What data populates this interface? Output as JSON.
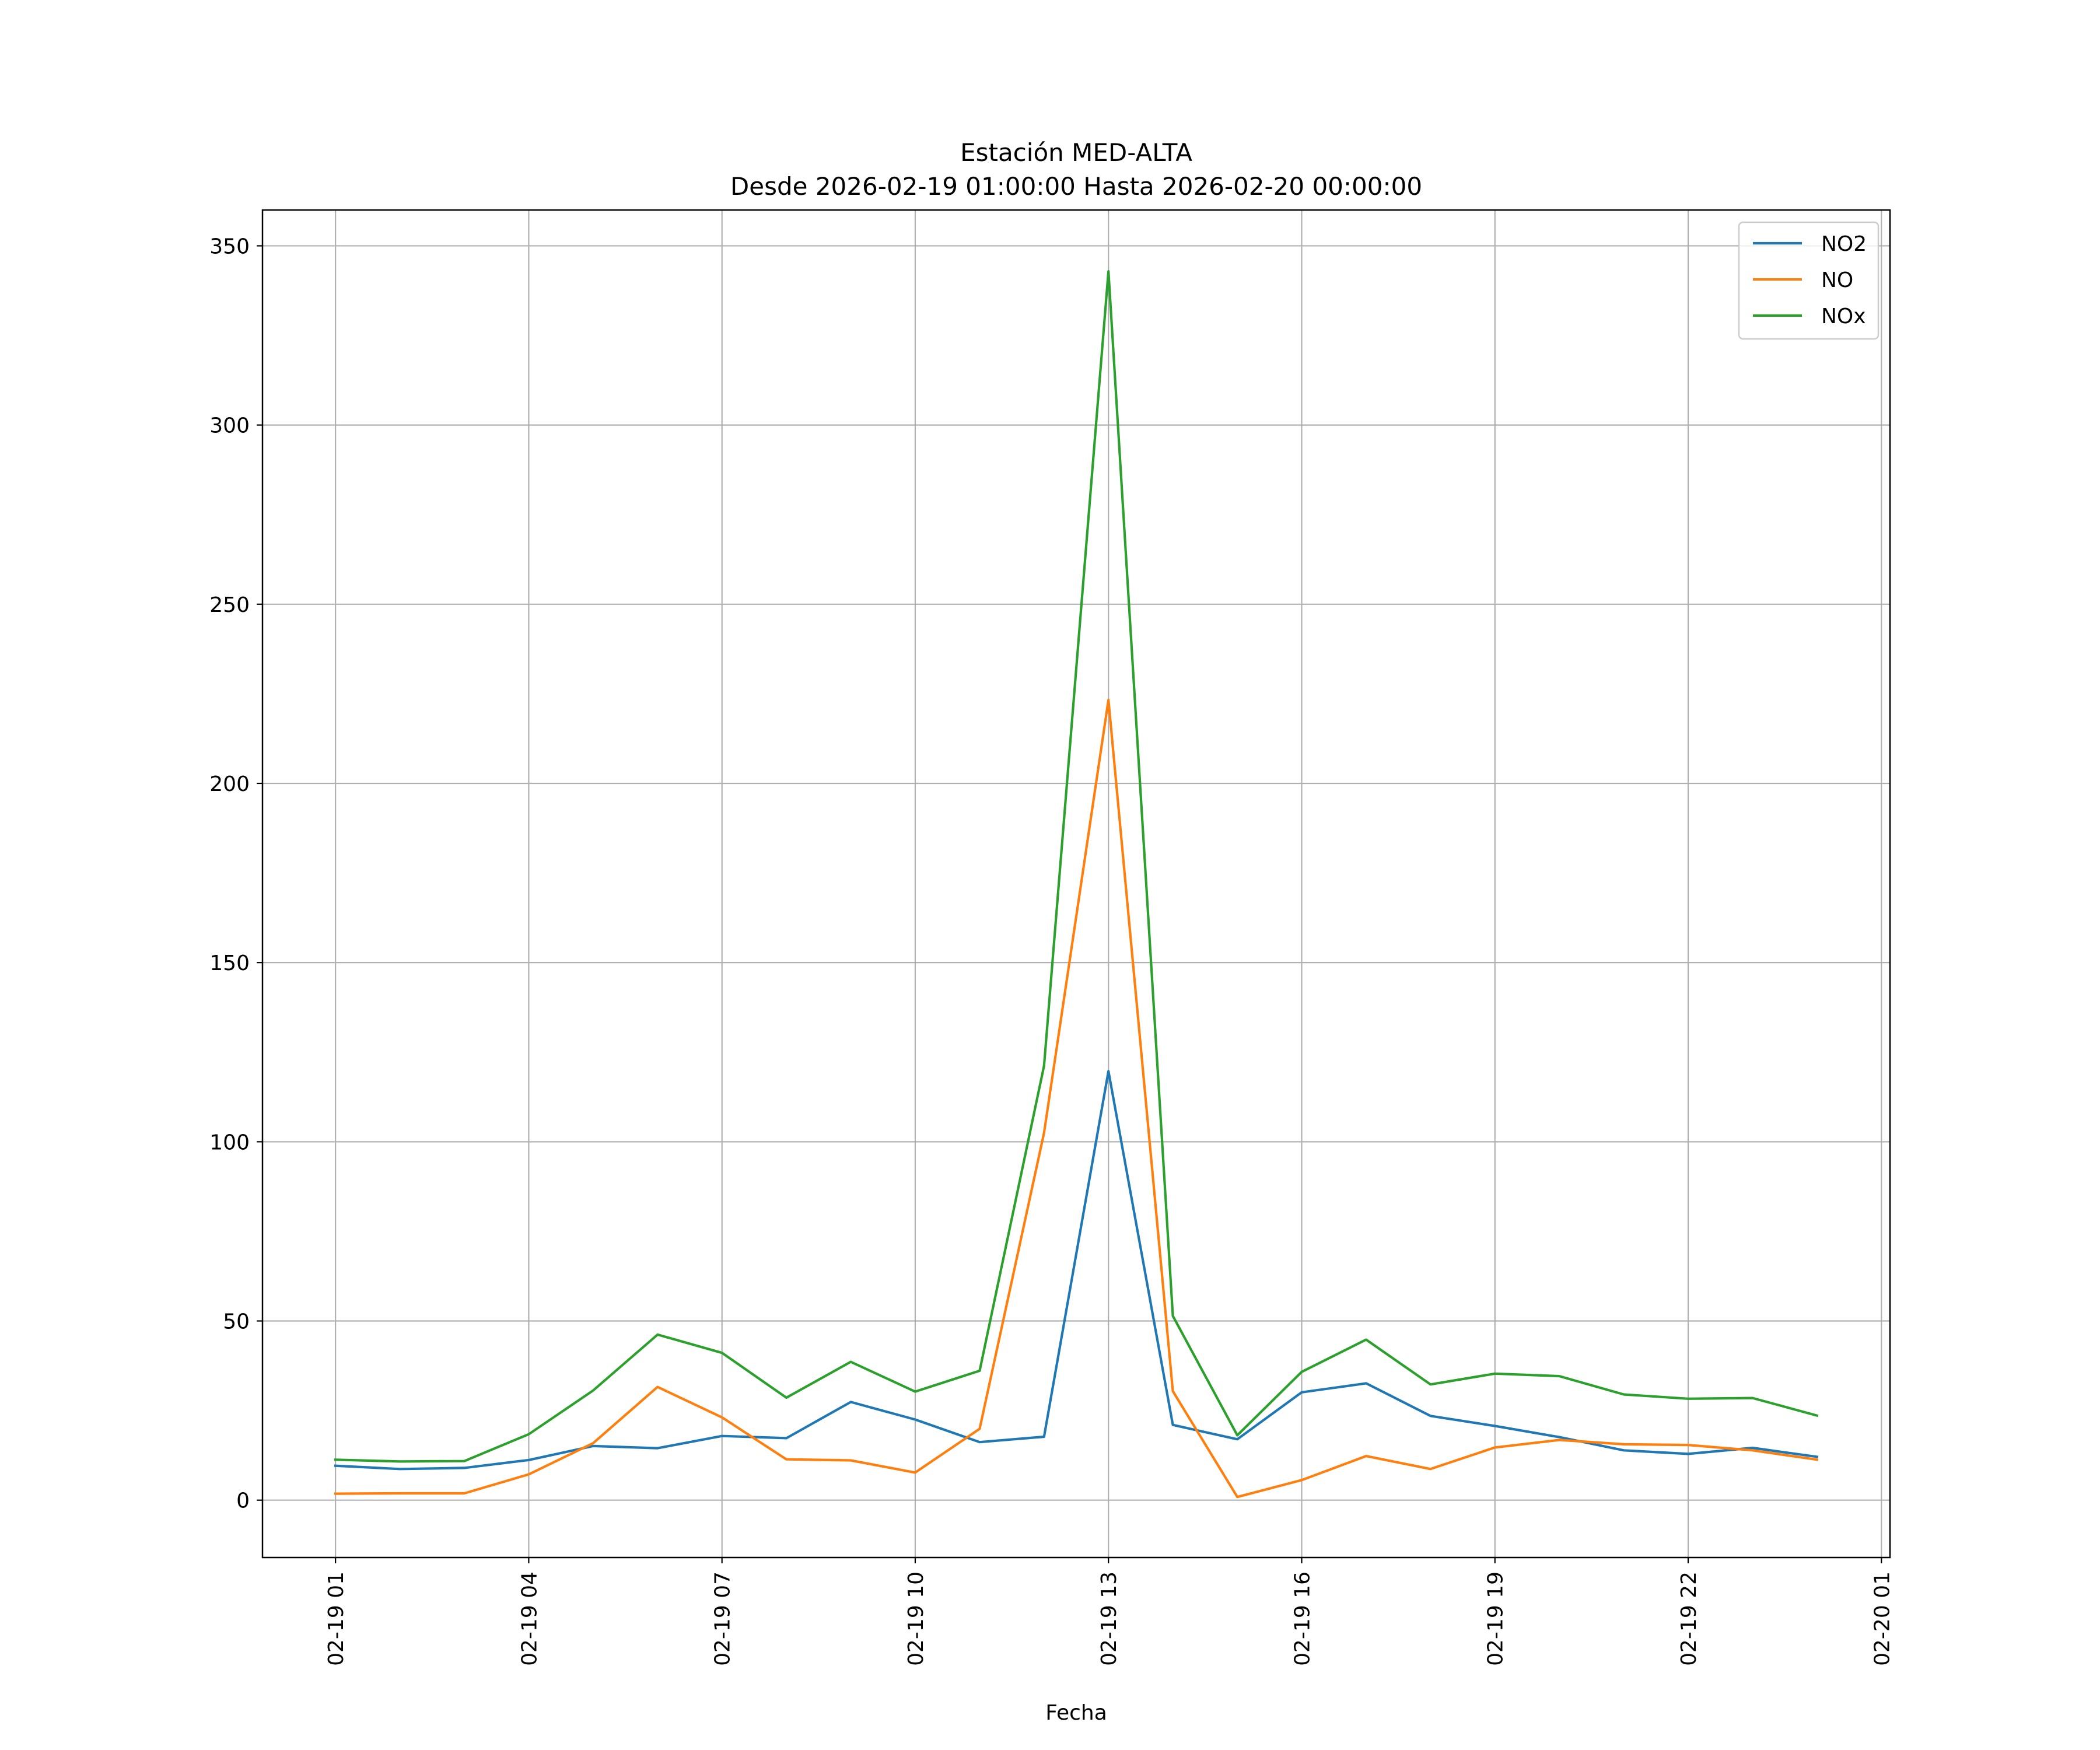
{
  "chart_data": {
    "type": "line",
    "title": "Estación MED-ALTA",
    "subtitle": "Desde 2026-02-19 01:00:00 Hasta 2026-02-20 00:00:00",
    "xlabel": "Fecha",
    "ylabel": "",
    "x": [
      "2026-02-19 01:00",
      "2026-02-19 02:00",
      "2026-02-19 03:00",
      "2026-02-19 04:00",
      "2026-02-19 05:00",
      "2026-02-19 06:00",
      "2026-02-19 07:00",
      "2026-02-19 08:00",
      "2026-02-19 09:00",
      "2026-02-19 10:00",
      "2026-02-19 11:00",
      "2026-02-19 12:00",
      "2026-02-19 13:00",
      "2026-02-19 14:00",
      "2026-02-19 15:00",
      "2026-02-19 16:00",
      "2026-02-19 17:00",
      "2026-02-19 18:00",
      "2026-02-19 19:00",
      "2026-02-19 20:00",
      "2026-02-19 21:00",
      "2026-02-19 22:00",
      "2026-02-19 23:00",
      "2026-02-20 00:00"
    ],
    "x_ticks": [
      {
        "label": "02-19 01",
        "x": "2026-02-19 01:00"
      },
      {
        "label": "02-19 04",
        "x": "2026-02-19 04:00"
      },
      {
        "label": "02-19 07",
        "x": "2026-02-19 07:00"
      },
      {
        "label": "02-19 10",
        "x": "2026-02-19 10:00"
      },
      {
        "label": "02-19 13",
        "x": "2026-02-19 13:00"
      },
      {
        "label": "02-19 16",
        "x": "2026-02-19 16:00"
      },
      {
        "label": "02-19 19",
        "x": "2026-02-19 19:00"
      },
      {
        "label": "02-19 22",
        "x": "2026-02-19 22:00"
      },
      {
        "label": "02-20 01",
        "x": "2026-02-20 01:00"
      }
    ],
    "xlim": [
      "2026-02-18 23:52",
      "2026-02-20 01:08"
    ],
    "y_ticks": [
      0,
      50,
      100,
      150,
      200,
      250,
      300,
      350
    ],
    "ylim": [
      -16,
      360
    ],
    "grid": true,
    "legend_position": "top-right",
    "series": [
      {
        "name": "NO2",
        "color": "#1f77b4",
        "values": [
          9.6,
          8.7,
          9.0,
          11.2,
          15.1,
          14.5,
          17.9,
          17.3,
          27.4,
          22.5,
          16.2,
          17.7,
          119.7,
          21.0,
          17.0,
          30.1,
          32.6,
          23.5,
          20.7,
          17.6,
          13.9,
          12.9,
          14.6,
          12.1
        ]
      },
      {
        "name": "NO",
        "color": "#ff7f0e",
        "values": [
          1.8,
          1.9,
          1.9,
          7.2,
          15.9,
          31.6,
          23.1,
          11.4,
          11.1,
          7.7,
          19.9,
          102.5,
          223.3,
          30.4,
          0.9,
          5.6,
          12.3,
          8.7,
          14.7,
          16.8,
          15.6,
          15.4,
          13.9,
          11.3
        ]
      },
      {
        "name": "NOx",
        "color": "#2ca02c",
        "values": [
          11.3,
          10.8,
          10.9,
          18.4,
          30.6,
          46.2,
          41.1,
          28.6,
          38.6,
          30.3,
          36.1,
          121.2,
          342.9,
          51.4,
          18.1,
          35.8,
          44.8,
          32.3,
          35.3,
          34.6,
          29.5,
          28.3,
          28.5,
          23.6
        ]
      }
    ]
  }
}
